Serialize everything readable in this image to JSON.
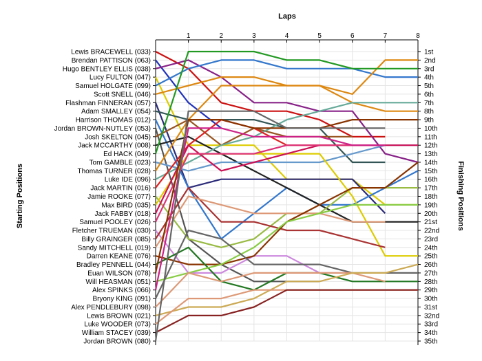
{
  "chart_data": {
    "type": "line",
    "title": "Laps",
    "xlabel": "Laps",
    "ylabel_left": "Starting Positions",
    "ylabel_right": "Finishing Positions",
    "x": [
      0,
      1,
      2,
      3,
      4,
      5,
      6,
      7,
      8
    ],
    "x_ticks": [
      "1",
      "2",
      "3",
      "4",
      "5",
      "6",
      "7",
      "8"
    ],
    "ylim": [
      1,
      35
    ],
    "y_inverted": true,
    "grid": true,
    "legend": "none",
    "finish_labels": [
      "1st",
      "2nd",
      "3rd",
      "4th",
      "5th",
      "6th",
      "7th",
      "8th",
      "9th",
      "10th",
      "11th",
      "12th",
      "13th",
      "14th",
      "15th",
      "16th",
      "17th",
      "18th",
      "19th",
      "20th",
      "21st",
      "22nd",
      "23rd",
      "24th",
      "25th",
      "26th",
      "27th",
      "28th",
      "29th",
      "30th",
      "31st",
      "32nd",
      "33rd",
      "34th",
      "35th"
    ],
    "series": [
      {
        "name": "Lewis BRACEWELL (033)",
        "color": "#cc1111",
        "values": [
          1,
          3,
          7,
          8,
          8,
          9,
          11,
          11,
          null
        ]
      },
      {
        "name": "Brendan PATTISON (063)",
        "color": "#2233bb",
        "values": [
          2,
          7,
          10,
          null,
          null,
          null,
          null,
          null,
          null
        ]
      },
      {
        "name": "Hugo BENTLEY ELLIS (038)",
        "color": "#882288",
        "values": [
          3,
          2,
          4,
          7,
          7,
          8,
          8,
          13,
          14
        ]
      },
      {
        "name": "Lucy FULTON (047)",
        "color": "#ddcc00",
        "values": [
          4,
          12,
          12,
          12,
          16,
          16,
          16,
          19,
          19
        ]
      },
      {
        "name": "Samuel HOLGATE (099)",
        "color": "#3377cc",
        "values": [
          5,
          3,
          2,
          2,
          3,
          3,
          3,
          4,
          4
        ]
      },
      {
        "name": "Scott SNELL (046)",
        "color": "#dd8811",
        "values": [
          6,
          5,
          4,
          4,
          5,
          5,
          6,
          2,
          2
        ]
      },
      {
        "name": "Flashman FINNERAN (057)",
        "color": "#2b2b7a",
        "values": [
          7,
          17,
          16,
          16,
          16,
          16,
          16,
          20,
          null
        ]
      },
      {
        "name": "Adam SMALLEY (054)",
        "color": "#335555",
        "values": [
          8,
          9,
          9,
          9,
          10,
          10,
          14,
          14,
          null
        ]
      },
      {
        "name": "Harrison THOMAS (012)",
        "color": "#3377cc",
        "values": [
          9,
          17,
          23,
          20,
          17,
          19,
          19,
          17,
          15
        ]
      },
      {
        "name": "Jordan BROWN-NUTLEY (053)",
        "color": "#555555",
        "values": [
          10,
          23,
          26,
          28,
          28,
          28,
          null,
          null,
          null
        ]
      },
      {
        "name": "Josh SKELTON (045)",
        "color": "#995522",
        "values": [
          11,
          9,
          12,
          10,
          11,
          11,
          11,
          null,
          null
        ]
      },
      {
        "name": "Jack MCCARTHY (008)",
        "color": "#222222",
        "values": [
          12,
          11,
          13,
          15,
          17,
          19,
          21,
          21,
          21
        ]
      },
      {
        "name": "Ed HACK (049)",
        "color": "#229922",
        "values": [
          13,
          1,
          1,
          1,
          2,
          2,
          3,
          3,
          3
        ]
      },
      {
        "name": "Tom GAMBLE (023)",
        "color": "#6699cc",
        "values": [
          14,
          15,
          14,
          14,
          14,
          14,
          13,
          12,
          12
        ]
      },
      {
        "name": "Thomas TURNER (028)",
        "color": "#dd8811",
        "values": [
          15,
          9,
          5,
          5,
          5,
          5,
          7,
          8,
          8
        ]
      },
      {
        "name": "Luke IDE (096)",
        "color": "#66aa99",
        "values": [
          16,
          14,
          12,
          11,
          9,
          8,
          7,
          7,
          7
        ]
      },
      {
        "name": "Jack MARTIN (016)",
        "color": "#dd2222",
        "values": [
          17,
          12,
          9,
          10,
          12,
          12,
          12,
          12,
          null
        ]
      },
      {
        "name": "Jamie ROOKE (077)",
        "color": "#99bb44",
        "values": [
          18,
          23,
          24,
          23,
          20,
          20,
          17,
          17,
          17
        ]
      },
      {
        "name": "Max BIRD (035)",
        "color": "#ddcc00",
        "values": [
          19,
          13,
          13,
          13,
          13,
          13,
          18,
          25,
          25
        ]
      },
      {
        "name": "Jack FABBY (018)",
        "color": "#cc1155",
        "values": [
          20,
          12,
          15,
          14,
          13,
          12,
          12,
          12,
          12
        ]
      },
      {
        "name": "Samuel POOLEY (026)",
        "color": "#dd3377",
        "values": [
          21,
          13,
          13,
          13,
          12,
          12,
          12,
          12,
          null
        ]
      },
      {
        "name": "Fletcher TRUEMAN (030)",
        "color": "#cc88dd",
        "values": [
          22,
          27,
          27,
          25,
          25,
          27,
          27,
          null,
          null
        ]
      },
      {
        "name": "Billy GRAINGER (085)",
        "color": "#aa3333",
        "values": [
          23,
          17,
          21,
          21,
          22,
          22,
          23,
          24,
          null
        ]
      },
      {
        "name": "Sandy MITCHELL (019)",
        "color": "#dd9977",
        "values": [
          24,
          18,
          19,
          20,
          20,
          20,
          21,
          21,
          null
        ]
      },
      {
        "name": "Darren KEANE (076)",
        "color": "#883300",
        "values": [
          25,
          26,
          26,
          25,
          21,
          19,
          17,
          17,
          14
        ]
      },
      {
        "name": "Bradley PENNELL (044)",
        "color": "#227722",
        "values": [
          26,
          24,
          28,
          29,
          27,
          27,
          28,
          28,
          28
        ]
      },
      {
        "name": "Euan WILSON (078)",
        "color": "#883300",
        "values": [
          27,
          9,
          9,
          10,
          10,
          10,
          9,
          9,
          9
        ]
      },
      {
        "name": "Will HEASMAN (051)",
        "color": "#88cc44",
        "values": [
          28,
          27,
          26,
          24,
          21,
          20,
          19,
          19,
          19
        ]
      },
      {
        "name": "Alex SPINKS (066)",
        "color": "#cc2288",
        "values": [
          29,
          10,
          10,
          11,
          11,
          11,
          12,
          12,
          null
        ]
      },
      {
        "name": "Bryony KING (091)",
        "color": "#666666",
        "values": [
          30,
          22,
          23,
          26,
          26,
          26,
          27,
          27,
          27
        ]
      },
      {
        "name": "Alex PENDLEBURY (098)",
        "color": "#dd9977",
        "values": [
          31,
          27,
          28,
          27,
          27,
          27,
          27,
          28,
          null
        ]
      },
      {
        "name": "Lewis BROWN (021)",
        "color": "#ccaa55",
        "values": [
          32,
          31,
          31,
          30,
          28,
          28,
          27,
          27,
          26
        ]
      },
      {
        "name": "Luke WOODER (073)",
        "color": "#dd9977",
        "values": [
          33,
          30,
          30,
          29,
          29,
          29,
          29,
          29,
          29
        ]
      },
      {
        "name": "William STACEY (039)",
        "color": "#882222",
        "values": [
          34,
          32,
          32,
          31,
          29,
          29,
          29,
          29,
          29
        ]
      },
      {
        "name": "Jordan BROWN (080)",
        "color": "#666666",
        "values": [
          35,
          8,
          8,
          8,
          10,
          10,
          10,
          10,
          null
        ]
      }
    ]
  }
}
